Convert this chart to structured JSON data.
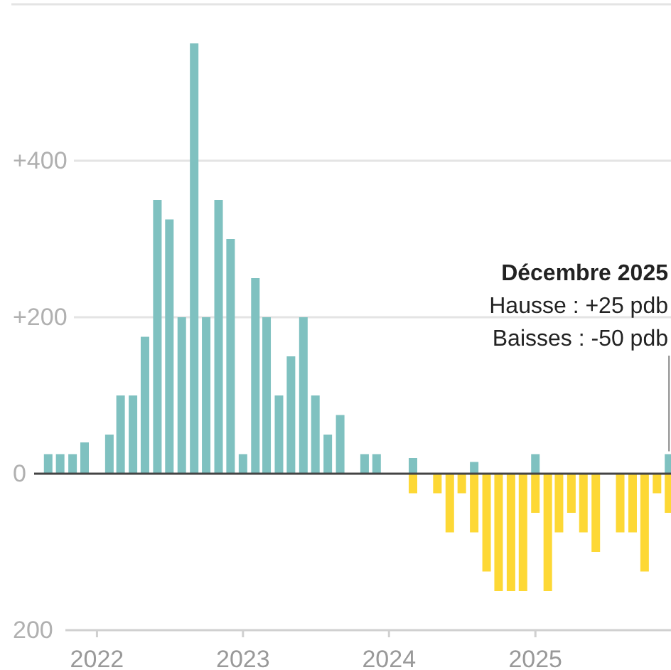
{
  "chart_data": {
    "type": "bar",
    "xlim": [
      "2021-06-01",
      "2025-12-06"
    ],
    "ref_lines": [
      {
        "axis": "y",
        "value": 0,
        "color": "#444444"
      }
    ],
    "xticks": [
      "2022",
      "2023",
      "2024",
      "2025"
    ],
    "ylim": [
      -200,
      600
    ],
    "yticks": [
      {
        "value": -200,
        "label": "200"
      },
      0,
      {
        "value": 200,
        "label": "+200"
      },
      {
        "value": 400,
        "label": "+400"
      },
      {
        "value": 600,
        "label": null
      }
    ],
    "grid": "y",
    "series": [
      {
        "color": "#7fc1c0",
        "x": [
          "2021-09",
          "2021-10",
          "2021-11",
          "2021-12",
          "2022-02",
          "2022-03",
          "2022-04",
          "2022-05",
          "2022-06",
          "2022-07",
          "2022-08",
          "2022-09",
          "2022-10",
          "2022-11",
          "2022-12",
          "2023-01",
          "2023-02",
          "2023-03",
          "2023-04",
          "2023-05",
          "2023-06",
          "2023-07",
          "2023-08",
          "2023-09",
          "2023-11",
          "2023-12",
          "2024-03",
          "2024-08",
          "2025-01",
          "2025-12"
        ],
        "values": [
          25,
          25,
          25,
          40,
          50,
          100,
          100,
          175,
          350,
          325,
          200,
          550,
          200,
          350,
          300,
          25,
          250,
          200,
          100,
          150,
          200,
          100,
          50,
          75,
          25,
          25,
          20,
          15,
          25,
          25
        ]
      },
      {
        "color": "#fdd835",
        "x": [
          "2024-03",
          "2024-05",
          "2024-06",
          "2024-07",
          "2024-08",
          "2024-09",
          "2024-10",
          "2024-11",
          "2024-12",
          "2025-01",
          "2025-02",
          "2025-03",
          "2025-04",
          "2025-05",
          "2025-06",
          "2025-08",
          "2025-09",
          "2025-10",
          "2025-11",
          "2025-12"
        ],
        "values": [
          -25,
          -25,
          -75,
          -25,
          -75,
          -125,
          -150,
          -150,
          -150,
          -50,
          -150,
          -75,
          -50,
          -75,
          -100,
          -75,
          -75,
          -125,
          -25,
          -50
        ]
      }
    ],
    "annotations": [
      "Décembre 2025",
      "Hausse : +25 pdb",
      "Baisses : -50 pdb"
    ]
  }
}
